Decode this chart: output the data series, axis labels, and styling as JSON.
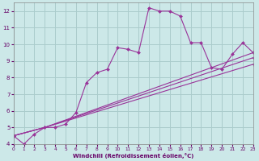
{
  "background_color": "#cce8e8",
  "grid_color": "#aacccc",
  "line_color": "#993399",
  "marker_color": "#993399",
  "xlabel": "Windchill (Refroidissement éolien,°C)",
  "xlabel_color": "#660066",
  "tick_color": "#660066",
  "xmin": 0,
  "xmax": 23,
  "ymin": 4,
  "ymax": 12.5,
  "yticks": [
    4,
    5,
    6,
    7,
    8,
    9,
    10,
    11,
    12
  ],
  "xticks": [
    0,
    1,
    2,
    3,
    4,
    5,
    6,
    7,
    8,
    9,
    10,
    11,
    12,
    13,
    14,
    15,
    16,
    17,
    18,
    19,
    20,
    21,
    22,
    23
  ],
  "series": [
    {
      "x": [
        0,
        1,
        2,
        3,
        4,
        5,
        6,
        7,
        8,
        9,
        10,
        11,
        12,
        13,
        14,
        15,
        16,
        17,
        18,
        19,
        20,
        21,
        22,
        23
      ],
      "y": [
        4.5,
        4.0,
        4.6,
        5.0,
        5.0,
        5.2,
        5.9,
        7.7,
        8.3,
        8.5,
        9.8,
        9.7,
        9.5,
        12.2,
        12.0,
        12.0,
        11.7,
        10.1,
        10.1,
        8.6,
        8.5,
        9.4,
        10.1,
        9.5
      ]
    },
    {
      "x": [
        0,
        3,
        23
      ],
      "y": [
        4.5,
        5.0,
        9.5
      ]
    },
    {
      "x": [
        0,
        3,
        23
      ],
      "y": [
        4.5,
        5.0,
        9.2
      ]
    },
    {
      "x": [
        0,
        3,
        23
      ],
      "y": [
        4.5,
        5.0,
        8.8
      ]
    }
  ]
}
